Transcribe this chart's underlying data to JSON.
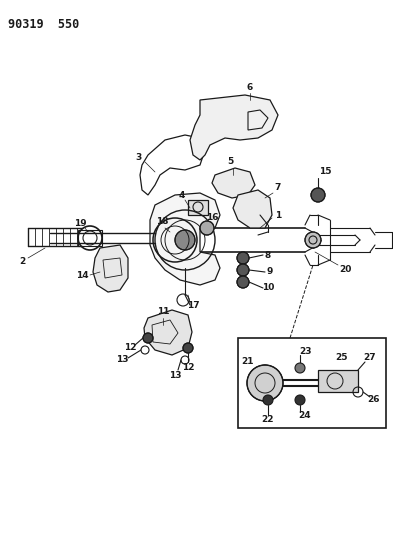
{
  "title": "90319  550",
  "bg_color": "#ffffff",
  "line_color": "#1a1a1a",
  "title_fontsize": 8.5,
  "label_fontsize": 6.5,
  "fig_width": 3.93,
  "fig_height": 5.33,
  "dpi": 100
}
